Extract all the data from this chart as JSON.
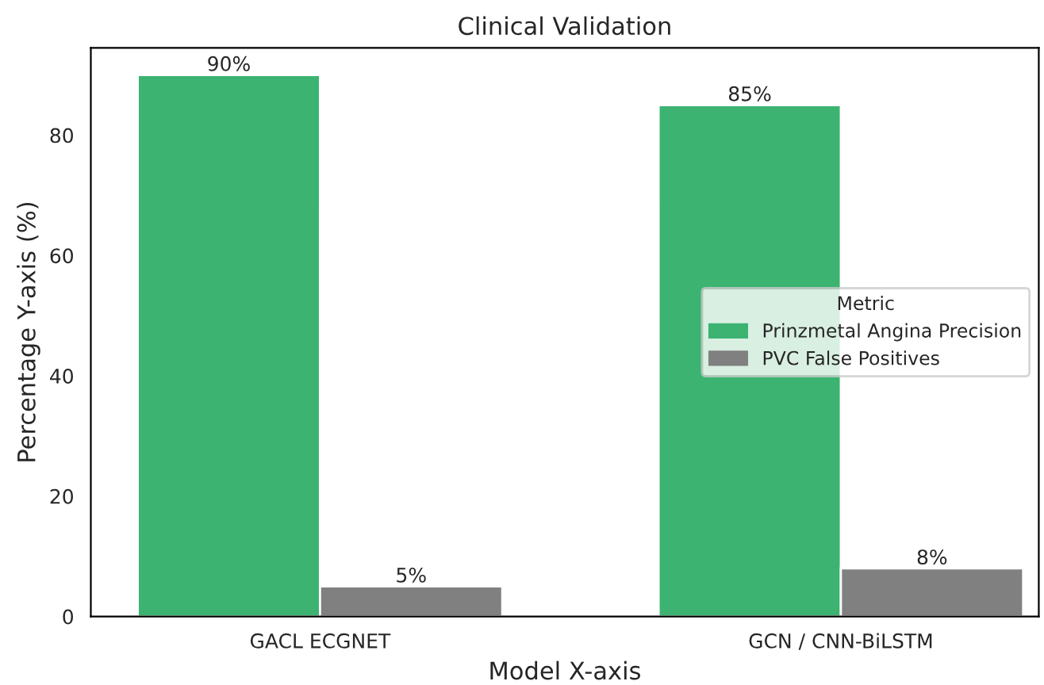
{
  "chart_data": {
    "type": "bar",
    "title": "Clinical Validation",
    "xlabel": "Model X-axis",
    "ylabel": "Percentage Y-axis (%)",
    "legend_title": "Metric",
    "categories": [
      "GACL ECGNET",
      "GCN / CNN-BiLSTM"
    ],
    "series": [
      {
        "name": "Prinzmetal Angina Precision",
        "color": "#3cb371",
        "values": [
          90,
          85
        ],
        "value_labels": [
          "90%",
          "85%"
        ]
      },
      {
        "name": "PVC False Positives",
        "color": "#808080",
        "values": [
          5,
          8
        ],
        "value_labels": [
          "5%",
          "8%"
        ]
      }
    ],
    "ylim": [
      0,
      94.5
    ],
    "yticks": [
      0,
      20,
      40,
      60,
      80
    ],
    "grid": false,
    "legend": "center right"
  }
}
